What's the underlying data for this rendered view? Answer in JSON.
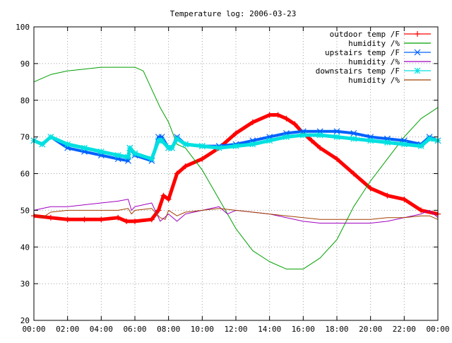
{
  "chart_data": {
    "type": "line",
    "title": "Temperature log: 2006-03-23",
    "xlabel": "",
    "ylabel": "",
    "xlim": [
      0,
      24
    ],
    "ylim": [
      20,
      100
    ],
    "xticks": [
      "00:00",
      "02:00",
      "04:00",
      "06:00",
      "08:00",
      "10:00",
      "12:00",
      "14:00",
      "16:00",
      "18:00",
      "20:00",
      "22:00",
      "00:00"
    ],
    "yticks": [
      20,
      30,
      40,
      50,
      60,
      70,
      80,
      90,
      100
    ],
    "grid": true,
    "legend_position": "top-right",
    "series": [
      {
        "name": "outdoor temp /F",
        "color": "#ff0000",
        "marker": "plus",
        "width": 5,
        "x": [
          0,
          1,
          2,
          3,
          4,
          5,
          5.5,
          6,
          7,
          7.4,
          7.7,
          8,
          8.5,
          9,
          10,
          11,
          12,
          13,
          14,
          14.5,
          15,
          15.5,
          16,
          16.5,
          17,
          18,
          19,
          20,
          21,
          22,
          23,
          24
        ],
        "y": [
          48.5,
          48,
          47.5,
          47.5,
          47.5,
          48,
          47,
          47,
          47.5,
          50,
          54,
          53,
          60,
          62,
          64,
          67,
          71,
          74,
          76,
          76,
          75,
          73.5,
          71,
          69,
          67,
          64,
          60,
          56,
          54,
          53,
          50,
          49
        ]
      },
      {
        "name": "humidity /%",
        "color": "#00a000",
        "marker": "none",
        "width": 1,
        "x": [
          0,
          1,
          2,
          3,
          4,
          5,
          6,
          6.5,
          7,
          7.5,
          8,
          8.5,
          9,
          10,
          11,
          12,
          13,
          14,
          15,
          16,
          17,
          18,
          19,
          20,
          21,
          22,
          23,
          24
        ],
        "y": [
          85,
          87,
          88,
          88.5,
          89,
          89,
          89,
          88,
          83,
          78,
          74,
          68,
          67,
          61,
          53,
          45,
          39,
          36,
          34,
          34,
          37,
          42,
          51,
          58,
          64,
          70,
          75,
          78
        ]
      },
      {
        "name": "upstairs temp /F",
        "color": "#0060ff",
        "marker": "cross",
        "width": 4,
        "x": [
          0,
          0.5,
          1,
          2,
          3,
          4,
          5,
          5.6,
          5.7,
          6,
          7,
          7.4,
          7.6,
          8,
          8.2,
          8.5,
          9,
          10,
          11,
          12,
          13,
          14,
          15,
          16,
          17,
          18,
          19,
          20,
          21,
          22,
          23,
          23.5,
          24
        ],
        "y": [
          69,
          68,
          70,
          67,
          66,
          65,
          64,
          63.5,
          67,
          65,
          63.5,
          70,
          70,
          67,
          67,
          70,
          68,
          67.5,
          67.5,
          68,
          69,
          70,
          71,
          71.5,
          71.5,
          71.5,
          71,
          70,
          69.5,
          69,
          68,
          70,
          69
        ]
      },
      {
        "name": "humidity /%",
        "color": "#a000c0",
        "marker": "none",
        "width": 1,
        "x": [
          0,
          0.5,
          1,
          2,
          3,
          4,
          5,
          5.6,
          5.8,
          6,
          7,
          7.5,
          8,
          8.5,
          9,
          10,
          11,
          11.5,
          12,
          13,
          14,
          15,
          16,
          17,
          18,
          19,
          20,
          21,
          22,
          23,
          23.5,
          24
        ],
        "y": [
          50,
          50.5,
          51,
          51,
          51.5,
          52,
          52.5,
          53,
          50,
          51,
          52,
          47,
          49,
          47,
          49,
          50,
          51,
          49,
          50,
          49.5,
          49,
          48,
          47,
          46.5,
          46.5,
          46.5,
          46.5,
          47,
          48,
          49,
          50,
          48
        ]
      },
      {
        "name": "downstairs temp /F",
        "color": "#00e0e0",
        "marker": "star",
        "width": 5,
        "x": [
          0,
          0.5,
          1,
          2,
          3,
          4,
          5,
          5.6,
          5.7,
          6,
          7,
          7.4,
          7.6,
          8,
          8.2,
          8.5,
          9,
          10,
          11,
          12,
          13,
          14,
          15,
          16,
          17,
          18,
          19,
          20,
          21,
          22,
          23,
          23.5,
          24
        ],
        "y": [
          69,
          68,
          70,
          68,
          67,
          66,
          65,
          64.5,
          67,
          65.5,
          64,
          69,
          69,
          67,
          67,
          69.5,
          68,
          67.5,
          67,
          67.5,
          68,
          69,
          70,
          70.5,
          70.5,
          70,
          69.5,
          69,
          68.5,
          68,
          67.5,
          69.5,
          69
        ]
      },
      {
        "name": "humidity /%",
        "color": "#a04000",
        "marker": "none",
        "width": 1,
        "x": [
          0,
          0.5,
          1,
          2,
          3,
          4,
          5,
          5.6,
          5.8,
          6,
          7,
          7.5,
          7.8,
          8,
          8.5,
          9,
          10,
          11,
          12,
          13,
          14,
          15,
          16,
          17,
          18,
          19,
          20,
          21,
          22,
          23,
          23.5,
          24
        ],
        "y": [
          49,
          48,
          49.5,
          50,
          50,
          50,
          50,
          50.5,
          49,
          50,
          50.5,
          48,
          47.5,
          50,
          48.5,
          49.5,
          50,
          50.5,
          50,
          49.5,
          49,
          48.5,
          48,
          47.5,
          47.5,
          47.5,
          47.5,
          48,
          48,
          48.5,
          48.5,
          47.5
        ]
      }
    ]
  }
}
